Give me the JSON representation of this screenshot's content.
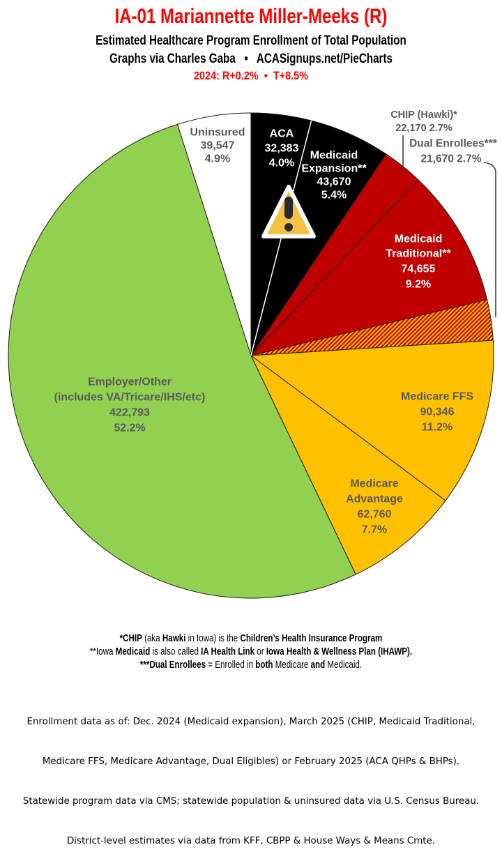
{
  "header": {
    "title": "IA-01 Mariannette Miller-Meeks (R)",
    "title_color": "#FF0000",
    "subtitle1": "Estimated Healthcare Program Enrollment of Total Population",
    "subtitle2": "Graphs via Charles Gaba   •   ACASignups.net/PieCharts",
    "partisan_line": "2024: R+0.2%  •  T+8.5%"
  },
  "icons": {
    "warning_triangle": "⚠ exclamation warning sign overlapping ACA / Medicaid Expansion slices",
    "warning_fill": "#F4C142",
    "warning_border": "#FFFFFF",
    "warning_glyph_color": "#2B2B2B"
  },
  "chart_data": {
    "type": "pie",
    "title": "Estimated Healthcare Program Enrollment of Total Population",
    "start_angle_deg": 0,
    "direction": "clockwise",
    "legend": "none (labels inside slices or with leader lines)",
    "slices": [
      {
        "name": "ACA",
        "name_lines": [
          "ACA"
        ],
        "value": 32383,
        "value_display": "32,383",
        "pct": 4.0,
        "pct_display": "4.0%",
        "color": "#000000",
        "label_color": "#FFFFFF",
        "label_position": "inside",
        "divider_after": true
      },
      {
        "name": "Medicaid Expansion**",
        "name_lines": [
          "Medicaid",
          "Expansion**"
        ],
        "value": 43670,
        "value_display": "43,670",
        "pct": 5.4,
        "pct_display": "5.4%",
        "color": "#000000",
        "label_color": "#FFFFFF",
        "label_position": "inside"
      },
      {
        "name": "CHIP (Hawki)*",
        "name_lines": [
          "CHIP (Hawki)*"
        ],
        "value": 22170,
        "value_display": "22,170",
        "pct": 2.7,
        "pct_display": "2.7%",
        "outside_label": "22,170 2.7%",
        "color": "#C00000",
        "label_color": "#595959",
        "label_position": "outside-top"
      },
      {
        "name": "Medicaid Traditional**",
        "name_lines": [
          "Medicaid",
          "Traditional**"
        ],
        "value": 74655,
        "value_display": "74,655",
        "pct": 9.2,
        "pct_display": "9.2%",
        "color": "#C00000",
        "label_color": "#FFFFFF",
        "label_position": "inside"
      },
      {
        "name": "Dual Enrollees***",
        "name_lines": [
          "Dual Enrollees***"
        ],
        "value": 21670,
        "value_display": "21,670",
        "pct": 2.7,
        "pct_display": "2.7%",
        "outside_label": "21,670 2.7%",
        "color": "#FFC000",
        "pattern": "hatch",
        "pattern_stripe_color": "#C00000",
        "label_color": "#595959",
        "label_position": "outside-right"
      },
      {
        "name": "Medicare FFS",
        "name_lines": [
          "Medicare FFS"
        ],
        "value": 90346,
        "value_display": "90,346",
        "pct": 11.2,
        "pct_display": "11.2%",
        "color": "#FFC000",
        "label_color": "#595959",
        "label_position": "inside"
      },
      {
        "name": "Medicare Advantage",
        "name_lines": [
          "Medicare",
          "Advantage"
        ],
        "value": 62760,
        "value_display": "62,760",
        "pct": 7.7,
        "pct_display": "7.7%",
        "color": "#FFC000",
        "label_color": "#595959",
        "label_position": "inside"
      },
      {
        "name": "Employer/Other (includes VA/Tricare/IHS/etc)",
        "name_lines": [
          "Employer/Other",
          "(includes VA/Tricare/IHS/etc)"
        ],
        "value": 422793,
        "value_display": "422,793",
        "pct": 52.2,
        "pct_display": "52.2%",
        "color": "#92D050",
        "label_color": "#595959",
        "label_position": "inside"
      },
      {
        "name": "Uninsured",
        "name_lines": [
          "Uninsured"
        ],
        "value": 39547,
        "value_display": "39,547",
        "pct": 4.9,
        "pct_display": "4.9%",
        "color": "#FFFFFF",
        "label_color": "#595959",
        "label_position": "inside"
      }
    ]
  },
  "footnotes": {
    "f1": {
      "s1": "*CHIP",
      "s2": " (aka ",
      "s3": "Hawki",
      "s4": " in Iowa) is the ",
      "s5": "Children’s Health Insurance Program"
    },
    "f2": {
      "s1": "**Iowa ",
      "s2": "Medicaid",
      "s3": " is also called ",
      "s4": "IA Health Link",
      "s5": " or ",
      "s6": "Iowa Health & Wellness Plan (IHAWP)."
    },
    "f3": {
      "s1": "***Dual Enrollees",
      "s2": " = Enrolled in ",
      "s3": "both",
      "s4": " Medicare ",
      "s5": "and",
      "s6": " Medicaid."
    }
  },
  "source_block": {
    "line1": "Enrollment data as of: Dec. 2024 (Medicaid expansion), March 2025 (CHIP, Medicaid Traditional,",
    "line2": "Medicare FFS, Medicare Advantage, Dual Eligibles) or February 2025 (ACA QHPs & BHPs).",
    "line3": "Statewide program data via CMS; statewide population & uninsured data via U.S. Census Bureau.",
    "line4": "District-level estimates via data from KFF, CBPP & House Ways & Means Cmte."
  }
}
